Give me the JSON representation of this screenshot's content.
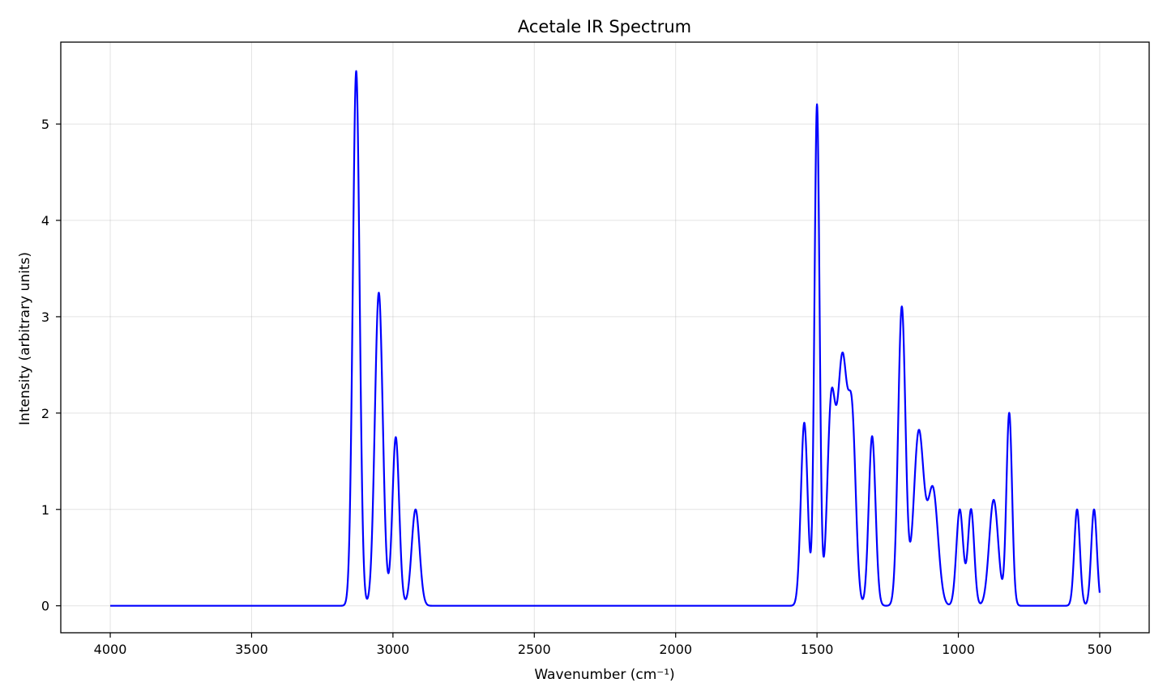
{
  "chart_data": {
    "type": "line",
    "title": "Acetale IR Spectrum",
    "xlabel": "Wavenumber (cm⁻¹)",
    "ylabel": "Intensity (arbitrary units)",
    "xlim": [
      4175,
      325
    ],
    "ylim": [
      -0.28,
      5.85
    ],
    "x_reversed": true,
    "grid": true,
    "x_ticks": [
      4000,
      3500,
      3000,
      2500,
      2000,
      1500,
      1000,
      500
    ],
    "y_ticks": [
      0,
      1,
      2,
      3,
      4,
      5
    ],
    "line_color": "#0000ff",
    "x_range": [
      4000,
      500
    ],
    "series": [
      {
        "peaks": [
          {
            "x": 3130,
            "y": 5.55,
            "w": 12
          },
          {
            "x": 3050,
            "y": 3.25,
            "w": 14
          },
          {
            "x": 2990,
            "y": 1.75,
            "w": 12
          },
          {
            "x": 2920,
            "y": 1.0,
            "w": 14
          },
          {
            "x": 1545,
            "y": 1.9,
            "w": 12
          },
          {
            "x": 1500,
            "y": 5.2,
            "w": 9
          },
          {
            "x": 1450,
            "y": 2.0,
            "w": 14
          },
          {
            "x": 1410,
            "y": 2.55,
            "w": 18
          },
          {
            "x": 1375,
            "y": 1.7,
            "w": 13
          },
          {
            "x": 1305,
            "y": 1.76,
            "w": 12
          },
          {
            "x": 1200,
            "y": 3.1,
            "w": 13
          },
          {
            "x": 1140,
            "y": 1.8,
            "w": 18
          },
          {
            "x": 1090,
            "y": 1.2,
            "w": 18
          },
          {
            "x": 995,
            "y": 1.0,
            "w": 12
          },
          {
            "x": 955,
            "y": 1.0,
            "w": 11
          },
          {
            "x": 875,
            "y": 1.1,
            "w": 16
          },
          {
            "x": 820,
            "y": 2.0,
            "w": 10
          },
          {
            "x": 580,
            "y": 1.0,
            "w": 10
          },
          {
            "x": 520,
            "y": 1.0,
            "w": 10
          }
        ]
      }
    ]
  }
}
